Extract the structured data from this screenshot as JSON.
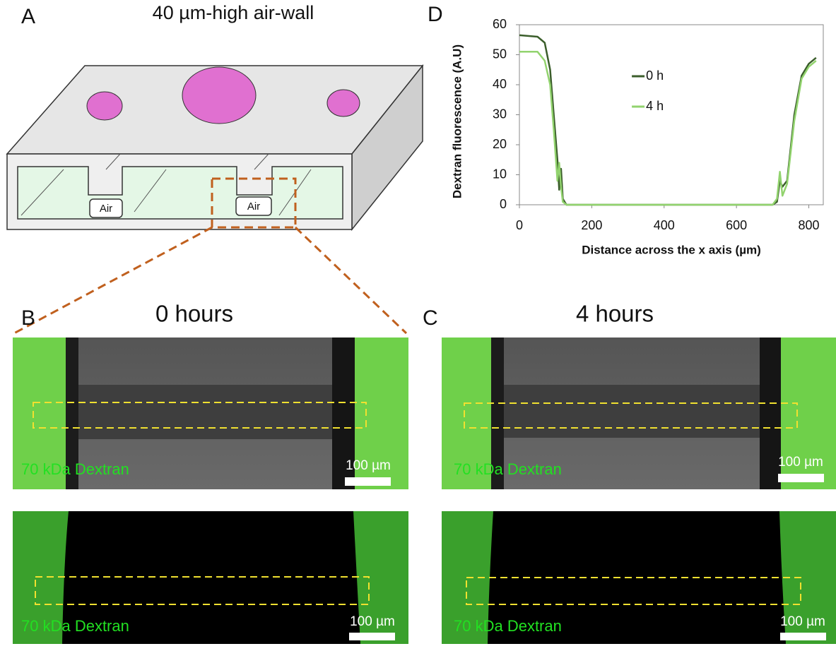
{
  "panel_a": {
    "label": "A",
    "title": "40 µm-high air-wall",
    "air_labels": [
      "Air",
      "Air"
    ]
  },
  "panel_b": {
    "label": "B",
    "title": "0 hours",
    "images": [
      {
        "stain": "70 kDa Dextran",
        "scale_bar": "100 µm"
      },
      {
        "stain": "70 kDa Dextran",
        "scale_bar": "100 µm"
      }
    ]
  },
  "panel_c": {
    "label": "C",
    "title": "4 hours",
    "images": [
      {
        "stain": "70 kDa Dextran",
        "scale_bar": "100 µm"
      },
      {
        "stain": "70 kDa Dextran",
        "scale_bar": "100 µm"
      }
    ]
  },
  "panel_d": {
    "label": "D"
  },
  "chart_data": {
    "type": "line",
    "x_label": "Distance across the x axis (µm)",
    "y_label": "Dextran fluorescence (A.U)",
    "x": [
      0,
      50,
      70,
      85,
      95,
      105,
      110,
      115,
      120,
      130,
      700,
      712,
      720,
      727,
      740,
      760,
      780,
      800,
      820
    ],
    "series": [
      {
        "name": "0 h",
        "color": "#3b5e2b",
        "values": [
          56.5,
          56,
          54,
          45,
          30,
          15,
          5,
          12,
          2,
          0,
          0,
          1,
          8,
          6,
          8,
          30,
          43,
          47,
          49
        ]
      },
      {
        "name": "4 h",
        "color": "#92d36e",
        "values": [
          51,
          51,
          48,
          40,
          25,
          8,
          14,
          6,
          1,
          0,
          0,
          2,
          11,
          3,
          7,
          28,
          42,
          46,
          48
        ]
      }
    ],
    "xlim": [
      0,
      840
    ],
    "xticks": [
      0,
      200,
      400,
      600,
      800
    ],
    "ylim": [
      0,
      60
    ],
    "yticks": [
      0,
      10,
      20,
      30,
      40,
      50,
      60
    ],
    "legend": "upper center"
  }
}
